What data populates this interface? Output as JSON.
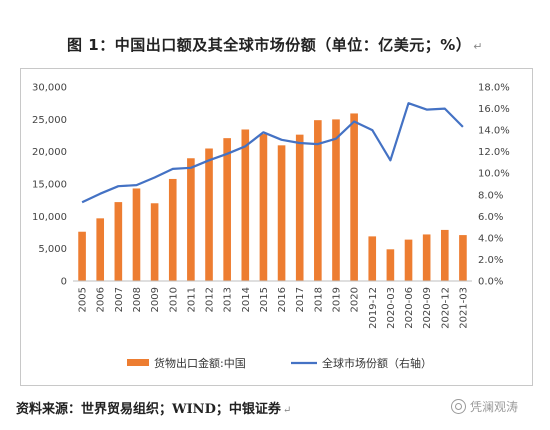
{
  "header": {
    "title": "图 1：中国出口额及其全球市场份额（单位：亿美元；%）",
    "title_mark": "↵"
  },
  "footer": {
    "source": "资料来源：世界贸易组织；WIND；中银证券",
    "source_mark": "↵",
    "watermark": "凭澜观涛",
    "watermark_icon": "wechat-icon"
  },
  "chart_data": {
    "type": "bar",
    "categories": [
      "2005",
      "2006",
      "2007",
      "2008",
      "2009",
      "2010",
      "2011",
      "2012",
      "2013",
      "2014",
      "2015",
      "2016",
      "2017",
      "2018",
      "2019",
      "2020",
      "2019-12",
      "2020-03",
      "2020-06",
      "2020-09",
      "2020-12",
      "2021-03"
    ],
    "series": [
      {
        "name": "货物出口金额:中国",
        "type": "bar",
        "axis": "left",
        "color": "#ed7d31",
        "values": [
          7620,
          9690,
          12200,
          14310,
          12020,
          15780,
          18980,
          20490,
          22090,
          23430,
          22730,
          20980,
          22630,
          24870,
          24990,
          25910,
          6900,
          4900,
          6400,
          7200,
          7900,
          7100
        ]
      },
      {
        "name": "全球市场份额（右轴）",
        "type": "line",
        "axis": "right",
        "color": "#4472c4",
        "values": [
          7.3,
          8.1,
          8.8,
          8.9,
          9.6,
          10.4,
          10.5,
          11.2,
          11.8,
          12.5,
          13.8,
          13.1,
          12.8,
          12.7,
          13.2,
          14.8,
          14.0,
          11.2,
          16.5,
          15.9,
          16.0,
          14.3
        ]
      }
    ],
    "y_left": {
      "min": 0,
      "max": 30000,
      "step": 5000,
      "ticks": [
        "0",
        "5,000",
        "10,000",
        "15,000",
        "20,000",
        "25,000",
        "30,000"
      ]
    },
    "y_right": {
      "min": 0,
      "max": 18,
      "step": 2,
      "ticks": [
        "0.0%",
        "2.0%",
        "4.0%",
        "6.0%",
        "8.0%",
        "10.0%",
        "12.0%",
        "14.0%",
        "16.0%",
        "18.0%"
      ]
    },
    "grid": false,
    "legend": "bottom"
  }
}
